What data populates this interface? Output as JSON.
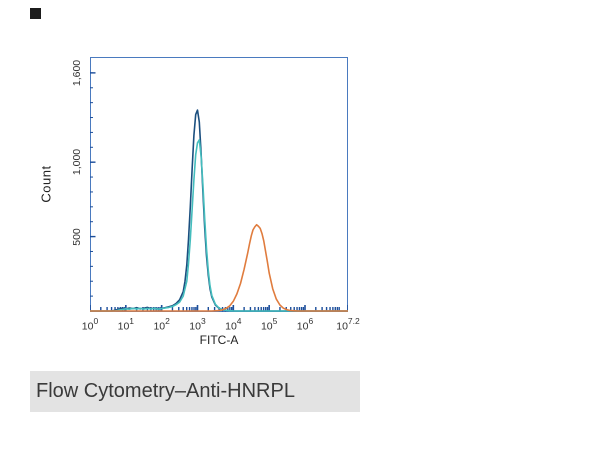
{
  "figure": {
    "caption": "Flow Cytometry–Anti-HNRPL"
  },
  "chart_data": {
    "type": "line",
    "title": "",
    "xlabel": "FITC-A",
    "ylabel": "Count",
    "x_scale": "log10",
    "xlim": [
      0,
      7.2
    ],
    "ylim": [
      0,
      1700
    ],
    "grid": false,
    "legend": "none",
    "frame_color": "#4a7abf",
    "tick_color": "#1c4e9b",
    "x_ticks": [
      "0",
      "1",
      "2",
      "3",
      "4",
      "5",
      "6",
      "7.2"
    ],
    "y_ticks": [
      {
        "value": 500,
        "label": "500"
      },
      {
        "value": 1000,
        "label": "1,000"
      },
      {
        "value": 1600,
        "label": "1,600"
      }
    ],
    "series": [
      {
        "name": "dark-blue-sample",
        "color": "#1b4f7f",
        "peak_x_log10": 3.0,
        "peak_count": 1350,
        "points": [
          [
            0.0,
            0
          ],
          [
            0.6,
            0
          ],
          [
            0.7,
            5
          ],
          [
            0.8,
            12
          ],
          [
            0.9,
            18
          ],
          [
            1.0,
            14
          ],
          [
            1.1,
            20
          ],
          [
            1.2,
            16
          ],
          [
            1.3,
            22
          ],
          [
            1.4,
            15
          ],
          [
            1.5,
            18
          ],
          [
            1.6,
            24
          ],
          [
            1.7,
            16
          ],
          [
            1.8,
            20
          ],
          [
            1.9,
            14
          ],
          [
            2.0,
            18
          ],
          [
            2.1,
            22
          ],
          [
            2.2,
            28
          ],
          [
            2.3,
            35
          ],
          [
            2.4,
            50
          ],
          [
            2.5,
            75
          ],
          [
            2.6,
            130
          ],
          [
            2.65,
            200
          ],
          [
            2.7,
            310
          ],
          [
            2.75,
            480
          ],
          [
            2.8,
            700
          ],
          [
            2.85,
            950
          ],
          [
            2.9,
            1180
          ],
          [
            2.95,
            1320
          ],
          [
            3.0,
            1350
          ],
          [
            3.05,
            1270
          ],
          [
            3.1,
            1060
          ],
          [
            3.15,
            800
          ],
          [
            3.2,
            560
          ],
          [
            3.25,
            370
          ],
          [
            3.3,
            240
          ],
          [
            3.35,
            150
          ],
          [
            3.4,
            95
          ],
          [
            3.5,
            40
          ],
          [
            3.6,
            18
          ],
          [
            3.7,
            8
          ],
          [
            3.8,
            4
          ],
          [
            4.0,
            1
          ],
          [
            4.2,
            0
          ],
          [
            7.2,
            0
          ]
        ]
      },
      {
        "name": "teal-sample",
        "color": "#44bdbd",
        "peak_x_log10": 3.05,
        "peak_count": 1150,
        "points": [
          [
            0.0,
            0
          ],
          [
            0.7,
            0
          ],
          [
            0.8,
            6
          ],
          [
            0.9,
            10
          ],
          [
            1.0,
            15
          ],
          [
            1.1,
            12
          ],
          [
            1.2,
            18
          ],
          [
            1.3,
            14
          ],
          [
            1.4,
            18
          ],
          [
            1.5,
            13
          ],
          [
            1.6,
            17
          ],
          [
            1.7,
            14
          ],
          [
            1.8,
            18
          ],
          [
            1.9,
            13
          ],
          [
            2.0,
            16
          ],
          [
            2.1,
            20
          ],
          [
            2.2,
            24
          ],
          [
            2.3,
            30
          ],
          [
            2.4,
            42
          ],
          [
            2.5,
            60
          ],
          [
            2.6,
            100
          ],
          [
            2.7,
            200
          ],
          [
            2.75,
            320
          ],
          [
            2.8,
            480
          ],
          [
            2.85,
            680
          ],
          [
            2.9,
            880
          ],
          [
            2.95,
            1050
          ],
          [
            3.0,
            1130
          ],
          [
            3.05,
            1150
          ],
          [
            3.1,
            1040
          ],
          [
            3.15,
            850
          ],
          [
            3.2,
            620
          ],
          [
            3.25,
            420
          ],
          [
            3.3,
            270
          ],
          [
            3.35,
            170
          ],
          [
            3.4,
            105
          ],
          [
            3.5,
            45
          ],
          [
            3.6,
            20
          ],
          [
            3.7,
            9
          ],
          [
            3.8,
            4
          ],
          [
            4.0,
            1
          ],
          [
            4.2,
            0
          ],
          [
            7.2,
            0
          ]
        ]
      },
      {
        "name": "orange-sample",
        "color": "#e07c3e",
        "peak_x_log10": 4.65,
        "peak_count": 580,
        "points": [
          [
            0.0,
            0
          ],
          [
            3.4,
            0
          ],
          [
            3.6,
            3
          ],
          [
            3.7,
            8
          ],
          [
            3.8,
            18
          ],
          [
            3.9,
            35
          ],
          [
            4.0,
            65
          ],
          [
            4.1,
            115
          ],
          [
            4.2,
            185
          ],
          [
            4.3,
            280
          ],
          [
            4.4,
            390
          ],
          [
            4.45,
            450
          ],
          [
            4.5,
            505
          ],
          [
            4.55,
            545
          ],
          [
            4.6,
            565
          ],
          [
            4.65,
            580
          ],
          [
            4.7,
            570
          ],
          [
            4.75,
            555
          ],
          [
            4.8,
            520
          ],
          [
            4.85,
            470
          ],
          [
            4.9,
            400
          ],
          [
            4.95,
            330
          ],
          [
            5.0,
            255
          ],
          [
            5.1,
            150
          ],
          [
            5.2,
            80
          ],
          [
            5.3,
            40
          ],
          [
            5.4,
            18
          ],
          [
            5.5,
            8
          ],
          [
            5.6,
            3
          ],
          [
            5.8,
            0
          ],
          [
            7.2,
            0
          ]
        ]
      }
    ]
  }
}
